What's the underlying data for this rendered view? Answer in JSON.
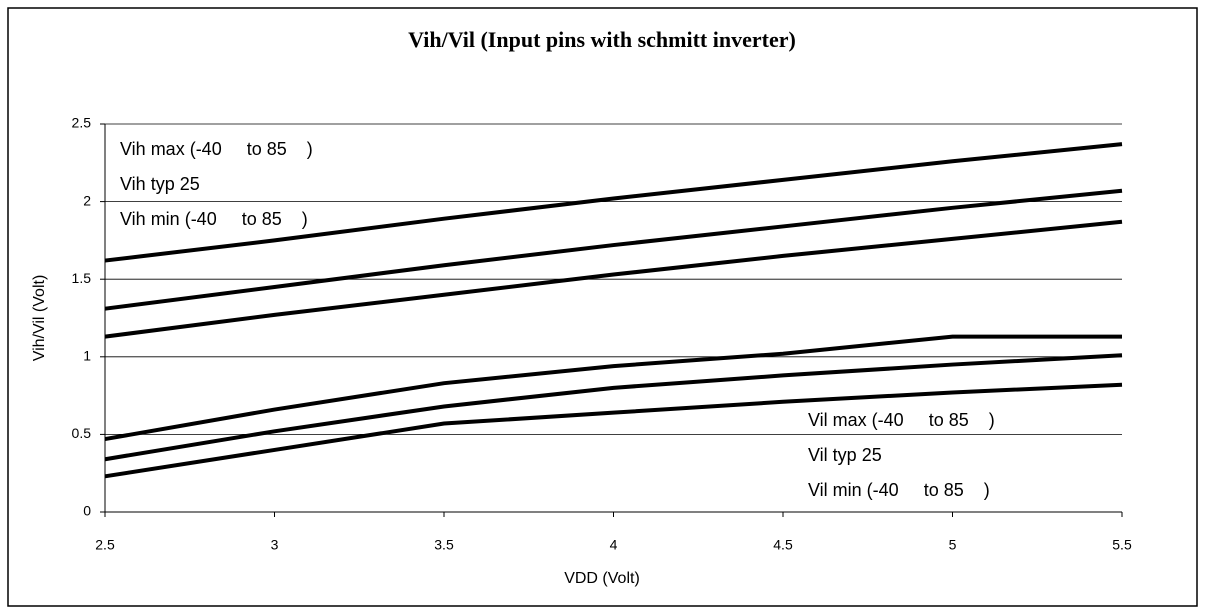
{
  "chart_data": {
    "type": "line",
    "title": "Vih/Vil (Input pins with schmitt inverter)",
    "xlabel": "VDD (Volt)",
    "ylabel": "Vih/Vil (Volt)",
    "x": [
      2.5,
      3,
      3.5,
      4,
      4.5,
      5,
      5.5
    ],
    "xlim": [
      2.5,
      5.5
    ],
    "xticks": [
      2.5,
      3,
      3.5,
      4,
      4.5,
      5,
      5.5
    ],
    "ylim": [
      0,
      2.5
    ],
    "yticks": [
      0,
      0.5,
      1,
      1.5,
      2,
      2.5
    ],
    "grid": true,
    "series": [
      {
        "name": "Vih max (-40     to 85    )",
        "color": "#000000",
        "values": [
          1.62,
          1.75,
          1.89,
          2.02,
          2.14,
          2.26,
          2.37
        ]
      },
      {
        "name": "Vih typ 25",
        "color": "#000000",
        "values": [
          1.31,
          1.45,
          1.59,
          1.72,
          1.84,
          1.96,
          2.07
        ]
      },
      {
        "name": "Vih min (-40     to 85    )",
        "color": "#000000",
        "values": [
          1.13,
          1.27,
          1.4,
          1.53,
          1.65,
          1.76,
          1.87
        ]
      },
      {
        "name": "Vil max (-40     to 85    )",
        "color": "#000000",
        "values": [
          0.47,
          0.66,
          0.83,
          0.94,
          1.02,
          1.13,
          1.13
        ]
      },
      {
        "name": "Vil typ 25",
        "color": "#000000",
        "values": [
          0.34,
          0.52,
          0.68,
          0.8,
          0.88,
          0.95,
          1.01
        ]
      },
      {
        "name": "Vil min (-40     to 85    )",
        "color": "#000000",
        "values": [
          0.23,
          0.4,
          0.57,
          0.64,
          0.71,
          0.77,
          0.82
        ]
      }
    ]
  }
}
